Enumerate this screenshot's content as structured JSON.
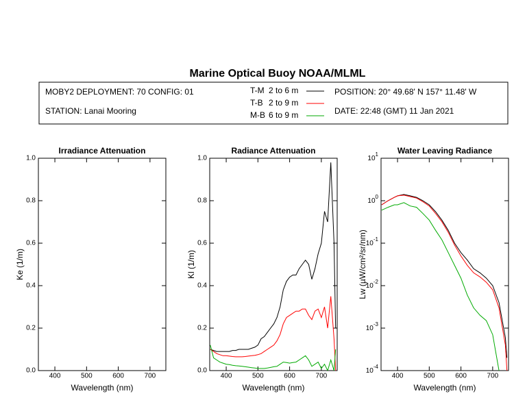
{
  "header": {
    "title": "Marine Optical Buoy NOAA/MLML",
    "deployment": "MOBY2 DEPLOYMENT: 70 CONFIG: 01",
    "station": "STATION: Lanai Mooring",
    "position": "POSITION: 20° 49.68' N   157° 11.48' W",
    "date": "DATE: 22:48 (GMT) 11 Jan 2021",
    "legend": [
      {
        "name": "T-M",
        "depth": "2 to 6  m",
        "color": "#000000"
      },
      {
        "name": "T-B",
        "depth": "2 to 9  m",
        "color": "#ff0000"
      },
      {
        "name": "M-B",
        "depth": "6 to 9  m",
        "color": "#00aa00"
      }
    ]
  },
  "chart_data": [
    {
      "type": "line",
      "title": "Irradiance Attenuation",
      "x_label": "Wavelength (nm)",
      "y_label": "Ke  (1/m)",
      "xlim": [
        348,
        750
      ],
      "xticks": [
        400,
        500,
        600,
        700
      ],
      "ylim": [
        0,
        1
      ],
      "yticks": [
        {
          "value": 0,
          "label": "0.0"
        },
        0.2,
        0.4,
        0.6,
        0.8,
        {
          "value": 1,
          "label": "1.0"
        }
      ],
      "x": [],
      "series": []
    },
    {
      "type": "line",
      "title": "Radiance Attenuation",
      "x_label": "Wavelength (nm)",
      "y_label": "Kl  (1/m)",
      "xlim": [
        348,
        750
      ],
      "xticks": [
        400,
        500,
        600,
        700
      ],
      "ylim": [
        0,
        1
      ],
      "yticks": [
        {
          "value": 0,
          "label": "0.0"
        },
        0.2,
        0.4,
        0.6,
        0.8,
        {
          "value": 1,
          "label": "1.0"
        }
      ],
      "x": [
        350,
        360,
        370,
        380,
        390,
        400,
        410,
        420,
        430,
        440,
        450,
        460,
        470,
        480,
        490,
        500,
        510,
        520,
        530,
        540,
        550,
        560,
        570,
        580,
        590,
        600,
        610,
        620,
        630,
        640,
        650,
        660,
        670,
        680,
        690,
        700,
        710,
        720,
        730,
        740,
        745
      ],
      "series": [
        {
          "color": "#000000",
          "values": [
            0.1,
            0.095,
            0.09,
            0.09,
            0.09,
            0.09,
            0.09,
            0.095,
            0.095,
            0.1,
            0.1,
            0.1,
            0.1,
            0.105,
            0.11,
            0.12,
            0.15,
            0.16,
            0.18,
            0.2,
            0.22,
            0.25,
            0.3,
            0.38,
            0.42,
            0.44,
            0.45,
            0.45,
            0.48,
            0.5,
            0.52,
            0.5,
            0.43,
            0.48,
            0.55,
            0.6,
            0.75,
            0.7,
            0.98,
            0.6,
            0.2
          ]
        },
        {
          "color": "#ff0000",
          "values": [
            0.1,
            0.09,
            0.08,
            0.075,
            0.07,
            0.07,
            0.068,
            0.066,
            0.065,
            0.065,
            0.065,
            0.066,
            0.068,
            0.07,
            0.072,
            0.075,
            0.08,
            0.09,
            0.1,
            0.11,
            0.12,
            0.14,
            0.17,
            0.22,
            0.25,
            0.26,
            0.27,
            0.28,
            0.28,
            0.29,
            0.29,
            0.26,
            0.24,
            0.28,
            0.29,
            0.25,
            0.3,
            0.2,
            0.35,
            0.15,
            0.0
          ]
        },
        {
          "color": "#00aa00",
          "values": [
            0.12,
            0.06,
            0.05,
            0.04,
            0.035,
            0.03,
            0.028,
            0.025,
            0.023,
            0.022,
            0.02,
            0.018,
            0.016,
            0.014,
            0.012,
            0.01,
            0.01,
            0.01,
            0.012,
            0.015,
            0.018,
            0.02,
            0.03,
            0.04,
            0.038,
            0.035,
            0.038,
            0.04,
            0.05,
            0.06,
            0.07,
            0.05,
            0.02,
            0.03,
            0.04,
            0.01,
            0.03,
            0.0,
            0.05,
            0.0,
            0.1
          ]
        }
      ]
    },
    {
      "type": "line",
      "title": "Water Leaving Radiance",
      "x_label": "Wavelength (nm)",
      "y_label": "Lw  (µW/cm²/sr/nm)",
      "ylog": true,
      "xlim": [
        348,
        750
      ],
      "xticks": [
        400,
        500,
        600,
        700
      ],
      "ylim": [
        0.0001,
        10
      ],
      "yticks": [
        {
          "value": 0.0001,
          "label": "10",
          "exp": "-4"
        },
        {
          "value": 0.001,
          "label": "10",
          "exp": "-3"
        },
        {
          "value": 0.01,
          "label": "10",
          "exp": "-2"
        },
        {
          "value": 0.1,
          "label": "10",
          "exp": "-1"
        },
        {
          "value": 1,
          "label": "10",
          "exp": "0"
        },
        {
          "value": 10,
          "label": "10",
          "exp": "1"
        }
      ],
      "x": [
        350,
        370,
        390,
        400,
        420,
        440,
        460,
        480,
        500,
        520,
        540,
        560,
        580,
        600,
        620,
        640,
        660,
        680,
        700,
        720,
        740,
        745
      ],
      "series": [
        {
          "color": "#000000",
          "values": [
            0.8,
            1.0,
            1.2,
            1.3,
            1.4,
            1.3,
            1.2,
            1.0,
            0.8,
            0.55,
            0.35,
            0.2,
            0.1,
            0.06,
            0.04,
            0.025,
            0.02,
            0.015,
            0.01,
            0.004,
            0.0006,
            0.0002
          ]
        },
        {
          "color": "#ff0000",
          "values": [
            0.8,
            1.0,
            1.2,
            1.3,
            1.35,
            1.25,
            1.15,
            0.95,
            0.75,
            0.5,
            0.32,
            0.18,
            0.09,
            0.05,
            0.03,
            0.02,
            0.016,
            0.012,
            0.008,
            0.003,
            0.0004,
            0.0001
          ]
        },
        {
          "color": "#00aa00",
          "values": [
            0.6,
            0.7,
            0.8,
            0.8,
            0.9,
            0.75,
            0.7,
            0.5,
            0.35,
            0.2,
            0.12,
            0.06,
            0.03,
            0.015,
            0.006,
            0.003,
            0.002,
            0.0015,
            0.0007,
            0.0001,
            null,
            null
          ]
        }
      ]
    }
  ]
}
